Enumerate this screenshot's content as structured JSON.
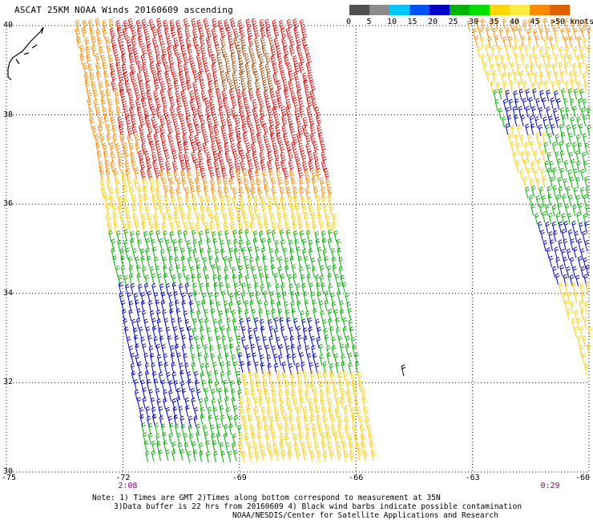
{
  "title": "ASCAT 25KM NOAA Winds 20160609 ascending",
  "colorbar": {
    "colors": [
      "#505050",
      "#8c8c8c",
      "#00c8ff",
      "#0050ff",
      "#0000c8",
      "#00b400",
      "#00e000",
      "#ffd800",
      "#ffee40",
      "#ff8c00",
      "#e06000",
      "#e02020",
      "#c00000",
      "#8b5a2b",
      "#d060ff",
      "#ff00ff",
      "#8000c0",
      "#500080"
    ],
    "labels": [
      "0",
      "5",
      "10",
      "15",
      "20",
      "25",
      "30",
      "35",
      "40",
      "45",
      ">50 knots"
    ]
  },
  "axes": {
    "lat_labels": [
      "40",
      "38",
      "36",
      "34",
      "32",
      "30"
    ],
    "lon_labels": [
      "-75",
      "-72",
      "-69",
      "-66",
      "-63",
      "-60"
    ],
    "time_labels": [
      "2:08",
      "0:29"
    ]
  },
  "notes": {
    "line1": "Note: 1) Times are GMT 2)Times along bottom correspond to measurement at 35N",
    "line2": "3)Data buffer is 22 hrs from 20160609 4) Black wind barbs indicate possible contamination",
    "line3": "NOAA/NESDIS/Center for Satellite Applications and Research"
  },
  "map_data": {
    "lat_range": [
      30,
      40
    ],
    "lon_range": [
      -75,
      -60
    ],
    "swath_west_pass": "2:08",
    "swath_east_pass": "0:29",
    "wind_colors": {
      "blue": "#0000d0",
      "green": "#00b000",
      "yellow": "#ffd000",
      "orange": "#ff8c00",
      "red": "#e01818",
      "brown": "#a05a20"
    }
  }
}
